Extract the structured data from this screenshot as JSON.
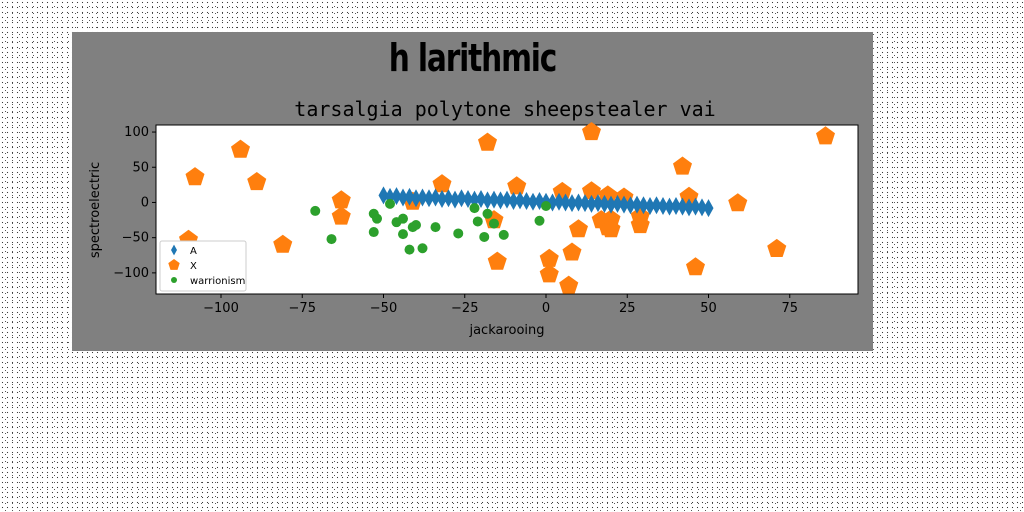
{
  "figure": {
    "suptitle": "h larithmic"
  },
  "chart_data": {
    "type": "scatter",
    "title": "tarsalgia polytone sheepstealer vai",
    "xlabel": "jackarooing",
    "ylabel": "spectroelectric",
    "xlim": [
      -120,
      96
    ],
    "ylim": [
      -130,
      110
    ],
    "xticks": [
      -100,
      -75,
      -50,
      -25,
      0,
      25,
      50,
      75
    ],
    "xtick_labels": [
      "−100",
      "−75",
      "−50",
      "−25",
      "0",
      "25",
      "50",
      "75"
    ],
    "yticks": [
      100,
      50,
      0,
      -50,
      -100
    ],
    "ytick_labels": [
      "100",
      "50",
      "0",
      "−50",
      "−100"
    ],
    "legend_position": "lower-left",
    "colors": {
      "A": "#1f77b4",
      "X": "#ff7f0e",
      "warrionism": "#2ca02c",
      "figure_bg": "#808080"
    },
    "series": [
      {
        "name": "A",
        "marker": "thin_diamond",
        "x": [
          -50,
          -48,
          -46,
          -44,
          -42,
          -40,
          -38,
          -36,
          -34,
          -32,
          -30,
          -28,
          -26,
          -24,
          -22,
          -20,
          -18,
          -16,
          -14,
          -12,
          -10,
          -8,
          -6,
          -4,
          -2,
          0,
          2,
          4,
          6,
          8,
          10,
          12,
          14,
          16,
          18,
          20,
          22,
          24,
          26,
          28,
          30,
          32,
          34,
          36,
          38,
          40,
          42,
          44,
          46,
          48,
          50
        ],
        "y": [
          10,
          8,
          9,
          7,
          8,
          6,
          7,
          6,
          7,
          5,
          6,
          4,
          6,
          5,
          4,
          5,
          3,
          4,
          3,
          4,
          2,
          3,
          2,
          1,
          2,
          1,
          0,
          1,
          0,
          -1,
          0,
          -1,
          -2,
          -1,
          -2,
          -3,
          -2,
          -3,
          -4,
          -3,
          -4,
          -5,
          -4,
          -5,
          -6,
          -5,
          -6,
          -7,
          -6,
          -7,
          -8
        ]
      },
      {
        "name": "X",
        "marker": "pentagon",
        "x": [
          -110,
          -108,
          -94,
          -89,
          -81,
          -63,
          -63,
          -41,
          -32,
          -18,
          -16,
          -15,
          -9,
          1,
          1,
          5,
          7,
          8,
          10,
          14,
          14,
          17,
          19,
          19,
          20,
          20,
          24,
          29,
          29,
          42,
          44,
          46,
          59,
          71,
          86
        ],
        "y": [
          -53,
          36,
          75,
          29,
          -60,
          3,
          -20,
          1,
          26,
          85,
          -25,
          -84,
          23,
          -80,
          -102,
          15,
          -118,
          -71,
          -38,
          100,
          16,
          -25,
          10,
          -35,
          -24,
          -38,
          7,
          -32,
          -20,
          51,
          8,
          -92,
          -1,
          -66,
          94
        ]
      },
      {
        "name": "warrionism",
        "marker": "circle",
        "x": [
          -71,
          -66,
          -53,
          -53,
          -52,
          -48,
          -46,
          -44,
          -44,
          -42,
          -41,
          -40,
          -38,
          -34,
          -27,
          -22,
          -21,
          -19,
          -18,
          -16,
          -13,
          -2,
          0
        ],
        "y": [
          -12,
          -52,
          -16,
          -42,
          -23,
          -2,
          -28,
          -45,
          -23,
          -67,
          -35,
          -32,
          -65,
          -35,
          -44,
          -8,
          -27,
          -49,
          -16,
          -30,
          -46,
          -26,
          -5
        ]
      }
    ]
  }
}
